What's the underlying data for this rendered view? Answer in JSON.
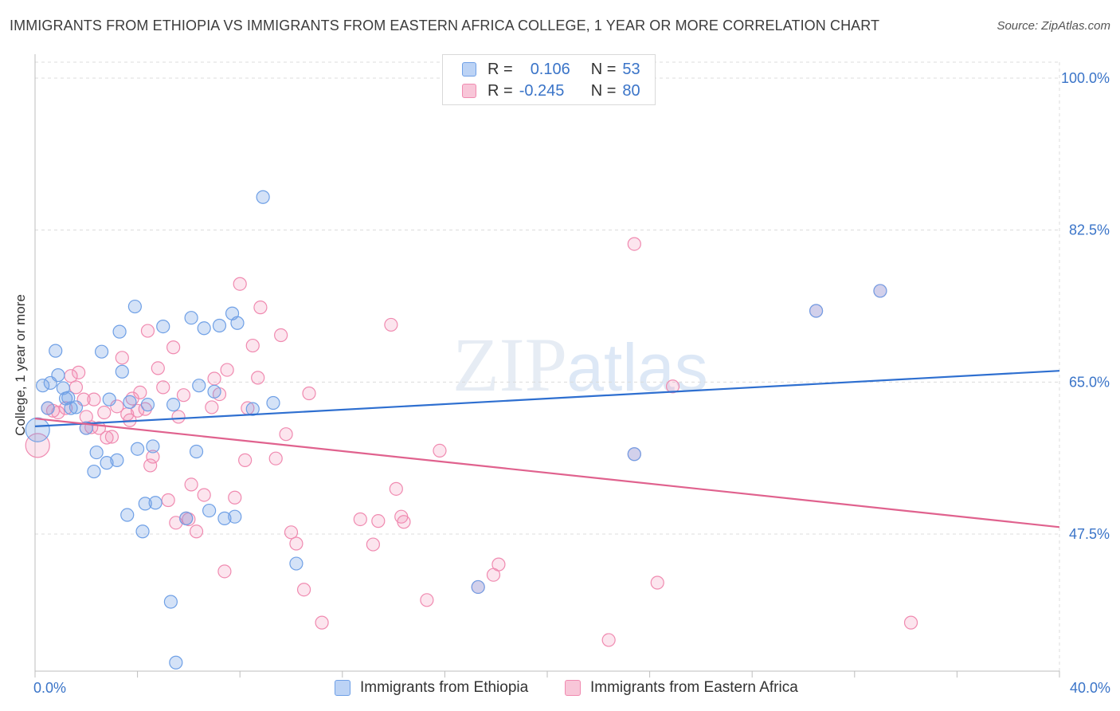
{
  "header": {
    "title": "IMMIGRANTS FROM ETHIOPIA VS IMMIGRANTS FROM EASTERN AFRICA COLLEGE, 1 YEAR OR MORE CORRELATION CHART",
    "source": "Source: ZipAtlas.com"
  },
  "watermark": "ZIPatlas",
  "legend": {
    "rows": [
      {
        "r_label": "R =",
        "r_value": "0.106",
        "n_label": "N =",
        "n_value": "53"
      },
      {
        "r_label": "R =",
        "r_value": "-0.245",
        "n_label": "N =",
        "n_value": "80"
      }
    ]
  },
  "chart_data": {
    "type": "scatter",
    "ylabel": "College, 1 year or more",
    "xlim": [
      0,
      40
    ],
    "ylim": [
      33,
      101
    ],
    "x_tick_labels": [
      "0.0%",
      "40.0%"
    ],
    "y_ticks": [
      47.5,
      65.0,
      82.5,
      100.0
    ],
    "y_tick_labels": [
      "47.5%",
      "65.0%",
      "82.5%",
      "100.0%"
    ],
    "grid": true,
    "colors": {
      "ethiopia": "#6fa0e6",
      "eastern_africa": "#f08ab0",
      "ethiopia_line": "#2e6fd0",
      "eastern_africa_line": "#e0628e"
    },
    "series": [
      {
        "name": "Immigrants from Ethiopia",
        "trend": {
          "x": [
            0,
            40
          ],
          "y": [
            59.9,
            66.3
          ]
        },
        "points": [
          [
            0.3,
            64.6
          ],
          [
            0.5,
            62.0
          ],
          [
            0.6,
            64.9
          ],
          [
            0.8,
            68.6
          ],
          [
            0.9,
            65.8
          ],
          [
            1.1,
            64.3
          ],
          [
            1.2,
            63.1
          ],
          [
            1.3,
            63.2
          ],
          [
            1.4,
            62.0
          ],
          [
            1.6,
            62.1
          ],
          [
            2.0,
            59.7
          ],
          [
            2.4,
            56.9
          ],
          [
            2.3,
            54.7
          ],
          [
            2.6,
            68.5
          ],
          [
            2.8,
            55.7
          ],
          [
            2.9,
            63.0
          ],
          [
            3.2,
            56.0
          ],
          [
            3.3,
            70.8
          ],
          [
            3.4,
            66.2
          ],
          [
            3.6,
            49.7
          ],
          [
            3.7,
            62.7
          ],
          [
            3.9,
            73.7
          ],
          [
            4.0,
            57.3
          ],
          [
            4.2,
            47.8
          ],
          [
            4.3,
            51.0
          ],
          [
            4.4,
            62.4
          ],
          [
            4.6,
            57.6
          ],
          [
            4.7,
            51.1
          ],
          [
            5.0,
            71.4
          ],
          [
            5.3,
            39.7
          ],
          [
            5.4,
            62.4
          ],
          [
            5.5,
            32.7
          ],
          [
            5.9,
            49.3
          ],
          [
            6.1,
            72.4
          ],
          [
            6.3,
            57.0
          ],
          [
            6.4,
            64.6
          ],
          [
            6.6,
            71.2
          ],
          [
            6.8,
            50.2
          ],
          [
            7.0,
            63.9
          ],
          [
            7.2,
            71.5
          ],
          [
            7.4,
            49.3
          ],
          [
            7.7,
            72.9
          ],
          [
            7.8,
            49.5
          ],
          [
            7.9,
            71.8
          ],
          [
            8.5,
            61.9
          ],
          [
            8.9,
            86.3
          ],
          [
            9.3,
            62.6
          ],
          [
            10.2,
            44.1
          ],
          [
            17.3,
            41.4
          ],
          [
            23.4,
            56.7
          ],
          [
            30.5,
            73.2
          ],
          [
            33.0,
            75.5
          ],
          [
            0.1,
            59.5
          ]
        ]
      },
      {
        "name": "Immigrants from Eastern Africa",
        "trend": {
          "x": [
            0,
            40
          ],
          "y": [
            60.8,
            48.3
          ]
        },
        "points": [
          [
            0.1,
            57.7
          ],
          [
            0.5,
            62.0
          ],
          [
            0.7,
            61.7
          ],
          [
            0.9,
            61.5
          ],
          [
            1.2,
            62.0
          ],
          [
            1.4,
            65.7
          ],
          [
            1.6,
            64.4
          ],
          [
            1.7,
            66.1
          ],
          [
            1.9,
            63.0
          ],
          [
            2.0,
            61.0
          ],
          [
            2.2,
            59.8
          ],
          [
            2.3,
            63.0
          ],
          [
            2.5,
            59.7
          ],
          [
            2.7,
            61.5
          ],
          [
            2.8,
            58.6
          ],
          [
            3.0,
            58.7
          ],
          [
            3.2,
            62.2
          ],
          [
            3.4,
            67.8
          ],
          [
            3.6,
            61.3
          ],
          [
            3.7,
            60.6
          ],
          [
            3.8,
            63.1
          ],
          [
            4.0,
            61.7
          ],
          [
            4.1,
            63.8
          ],
          [
            4.3,
            61.9
          ],
          [
            4.4,
            70.9
          ],
          [
            4.5,
            55.4
          ],
          [
            4.6,
            56.4
          ],
          [
            4.8,
            66.6
          ],
          [
            5.0,
            64.4
          ],
          [
            5.2,
            51.4
          ],
          [
            5.4,
            69.0
          ],
          [
            5.5,
            48.8
          ],
          [
            5.6,
            61.0
          ],
          [
            5.8,
            63.5
          ],
          [
            6.0,
            49.2
          ],
          [
            6.1,
            53.2
          ],
          [
            6.3,
            47.8
          ],
          [
            6.6,
            52.0
          ],
          [
            6.9,
            62.1
          ],
          [
            7.0,
            65.4
          ],
          [
            7.2,
            63.6
          ],
          [
            7.4,
            43.2
          ],
          [
            7.5,
            66.4
          ],
          [
            7.8,
            51.7
          ],
          [
            8.0,
            76.3
          ],
          [
            8.2,
            56.0
          ],
          [
            8.3,
            62.0
          ],
          [
            8.5,
            69.2
          ],
          [
            8.7,
            65.5
          ],
          [
            8.8,
            73.6
          ],
          [
            9.4,
            56.2
          ],
          [
            9.6,
            70.4
          ],
          [
            9.8,
            59.0
          ],
          [
            10.0,
            47.7
          ],
          [
            10.2,
            46.4
          ],
          [
            10.5,
            41.1
          ],
          [
            10.7,
            63.7
          ],
          [
            11.2,
            37.3
          ],
          [
            12.7,
            49.2
          ],
          [
            13.2,
            46.3
          ],
          [
            13.4,
            49.0
          ],
          [
            13.9,
            71.6
          ],
          [
            14.1,
            52.7
          ],
          [
            14.3,
            49.5
          ],
          [
            14.4,
            48.9
          ],
          [
            15.3,
            39.9
          ],
          [
            15.8,
            57.1
          ],
          [
            17.9,
            42.8
          ],
          [
            18.1,
            44.0
          ],
          [
            22.4,
            35.3
          ],
          [
            23.4,
            80.9
          ],
          [
            24.3,
            41.9
          ],
          [
            24.9,
            64.5
          ],
          [
            30.5,
            73.2
          ],
          [
            33.0,
            75.5
          ],
          [
            34.2,
            37.3
          ],
          [
            23.4,
            56.7
          ],
          [
            17.3,
            41.4
          ],
          [
            5.9,
            49.3
          ],
          [
            2.0,
            59.7
          ]
        ]
      }
    ]
  },
  "bottom_legend": {
    "items": [
      {
        "label": "Immigrants from Ethiopia"
      },
      {
        "label": "Immigrants from Eastern Africa"
      }
    ]
  }
}
